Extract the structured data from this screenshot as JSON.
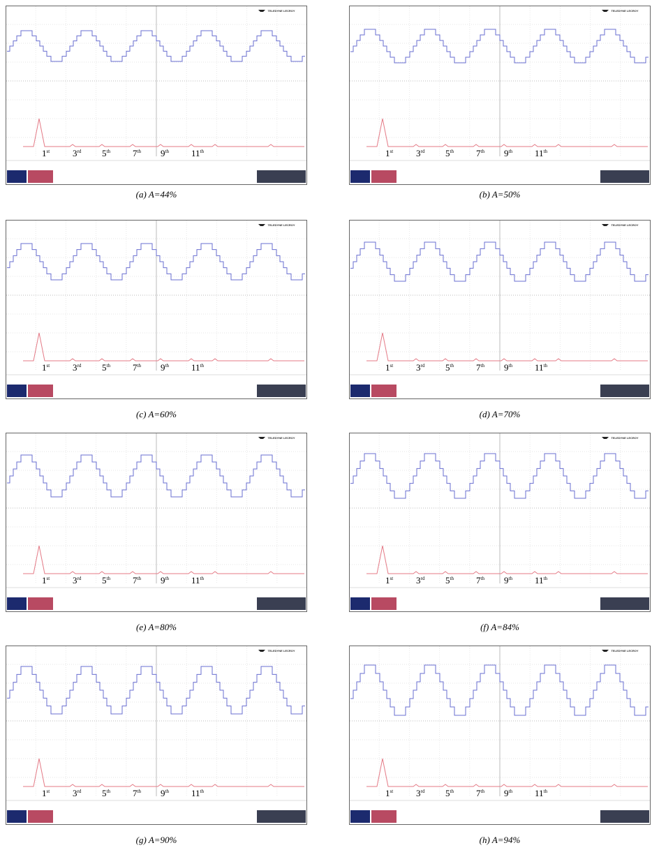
{
  "figure": {
    "logo": "TELEDYNE LECROY",
    "harmonics": [
      {
        "number": "1",
        "suffix": "st"
      },
      {
        "number": "3",
        "suffix": "rd"
      },
      {
        "number": "5",
        "suffix": "th"
      },
      {
        "number": "7",
        "suffix": "th"
      },
      {
        "number": "9",
        "suffix": "th"
      },
      {
        "number": "11",
        "suffix": "th"
      }
    ],
    "panels": [
      {
        "caption": "(a) A=44%"
      },
      {
        "caption": "(b) A=50%"
      },
      {
        "caption": "(c) A=60%"
      },
      {
        "caption": "(d) A=70%"
      },
      {
        "caption": "(e) A=80%"
      },
      {
        "caption": "(f) A=84%"
      },
      {
        "caption": "(g) A=90%"
      },
      {
        "caption": "(h) A=94%"
      }
    ]
  }
}
